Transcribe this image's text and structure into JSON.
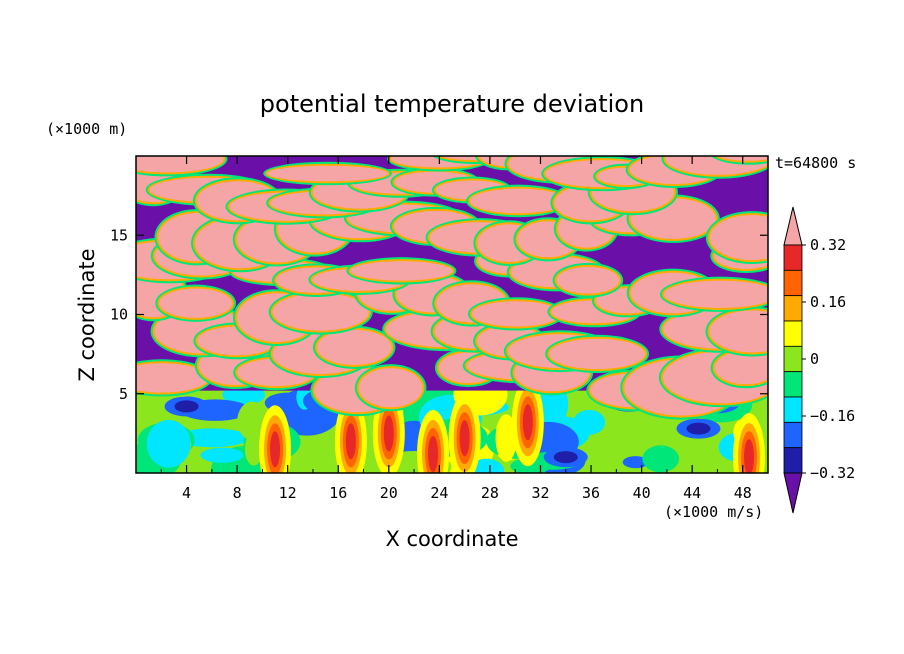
{
  "chart_data": {
    "type": "heatmap",
    "title": "potential temperature deviation",
    "time_label": "t=64800 s",
    "xlabel": "X coordinate",
    "ylabel": "Z coordinate",
    "x_unit": "(×1000 m/s)",
    "y_unit": "(×1000 m)",
    "xlim": [
      0,
      50
    ],
    "ylim": [
      0,
      20
    ],
    "x_ticks": [
      "4",
      "8",
      "12",
      "16",
      "20",
      "24",
      "28",
      "32",
      "36",
      "40",
      "44",
      "48"
    ],
    "y_ticks": [
      "5",
      "10",
      "15"
    ],
    "colorbar": {
      "levels": [
        -0.4,
        -0.32,
        -0.24,
        -0.16,
        -0.08,
        0,
        0.08,
        0.16,
        0.24,
        0.32,
        0.4
      ],
      "tick_labels": [
        "0.32",
        "0.16",
        "0",
        "−0.16",
        "−0.32"
      ],
      "tick_values": [
        0.32,
        0.16,
        0,
        -0.16,
        -0.32
      ],
      "colors": [
        "#6a0fa8",
        "#1e1ea8",
        "#1e64ff",
        "#00e6ff",
        "#00e678",
        "#8ce61e",
        "#ffff00",
        "#ffaa00",
        "#ff6400",
        "#e62828",
        "#f5a5a5"
      ],
      "extend": "both"
    },
    "field_description_bands": [
      {
        "z_range": [
          0,
          5
        ],
        "dominant": "mixed green/cyan/yellow/red plumes"
      },
      {
        "z_range": [
          5,
          20
        ],
        "dominant": "alternating pink (+0.4) and purple (−0.4) layers"
      }
    ]
  }
}
